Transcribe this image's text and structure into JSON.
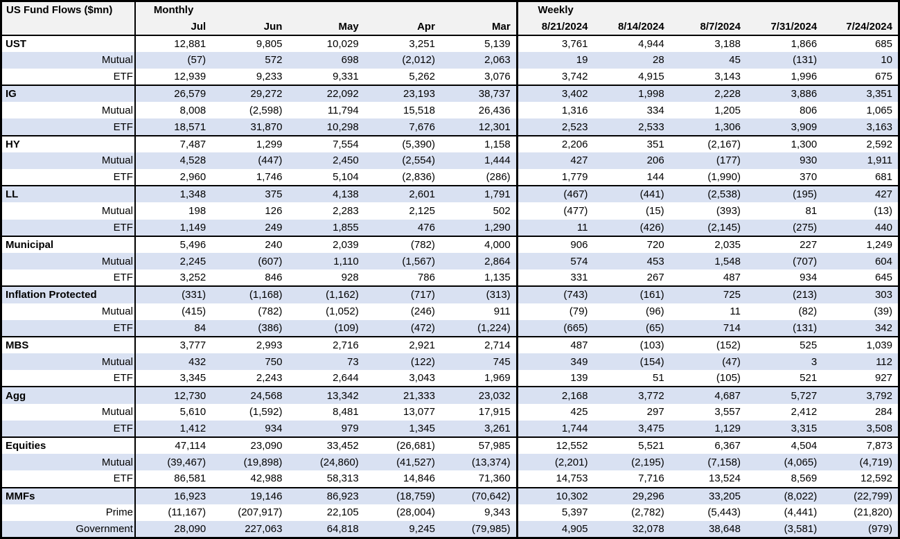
{
  "chart_data": {
    "type": "table",
    "title": "US Fund Flows ($mn)",
    "sections": [
      {
        "label": "Monthly",
        "columns": [
          "Jul",
          "Jun",
          "May",
          "Apr",
          "Mar"
        ]
      },
      {
        "label": "Weekly",
        "columns": [
          "8/21/2024",
          "8/14/2024",
          "8/7/2024",
          "7/31/2024",
          "7/24/2024"
        ]
      }
    ],
    "groups": [
      {
        "category": "UST",
        "rows": [
          {
            "label": "UST",
            "bold": true,
            "monthly": [
              "12,881",
              "9,805",
              "10,029",
              "3,251",
              "5,139"
            ],
            "weekly": [
              "3,761",
              "4,944",
              "3,188",
              "1,866",
              "685"
            ]
          },
          {
            "label": "Mutual",
            "bold": false,
            "monthly": [
              "(57)",
              "572",
              "698",
              "(2,012)",
              "2,063"
            ],
            "weekly": [
              "19",
              "28",
              "45",
              "(131)",
              "10"
            ]
          },
          {
            "label": "ETF",
            "bold": false,
            "monthly": [
              "12,939",
              "9,233",
              "9,331",
              "5,262",
              "3,076"
            ],
            "weekly": [
              "3,742",
              "4,915",
              "3,143",
              "1,996",
              "675"
            ]
          }
        ]
      },
      {
        "category": "IG",
        "rows": [
          {
            "label": "IG",
            "bold": true,
            "monthly": [
              "26,579",
              "29,272",
              "22,092",
              "23,193",
              "38,737"
            ],
            "weekly": [
              "3,402",
              "1,998",
              "2,228",
              "3,886",
              "3,351"
            ]
          },
          {
            "label": "Mutual",
            "bold": false,
            "monthly": [
              "8,008",
              "(2,598)",
              "11,794",
              "15,518",
              "26,436"
            ],
            "weekly": [
              "1,316",
              "334",
              "1,205",
              "806",
              "1,065"
            ]
          },
          {
            "label": "ETF",
            "bold": false,
            "monthly": [
              "18,571",
              "31,870",
              "10,298",
              "7,676",
              "12,301"
            ],
            "weekly": [
              "2,523",
              "2,533",
              "1,306",
              "3,909",
              "3,163"
            ]
          }
        ]
      },
      {
        "category": "HY",
        "rows": [
          {
            "label": "HY",
            "bold": true,
            "monthly": [
              "7,487",
              "1,299",
              "7,554",
              "(5,390)",
              "1,158"
            ],
            "weekly": [
              "2,206",
              "351",
              "(2,167)",
              "1,300",
              "2,592"
            ]
          },
          {
            "label": "Mutual",
            "bold": false,
            "monthly": [
              "4,528",
              "(447)",
              "2,450",
              "(2,554)",
              "1,444"
            ],
            "weekly": [
              "427",
              "206",
              "(177)",
              "930",
              "1,911"
            ]
          },
          {
            "label": "ETF",
            "bold": false,
            "monthly": [
              "2,960",
              "1,746",
              "5,104",
              "(2,836)",
              "(286)"
            ],
            "weekly": [
              "1,779",
              "144",
              "(1,990)",
              "370",
              "681"
            ]
          }
        ]
      },
      {
        "category": "LL",
        "rows": [
          {
            "label": "LL",
            "bold": true,
            "monthly": [
              "1,348",
              "375",
              "4,138",
              "2,601",
              "1,791"
            ],
            "weekly": [
              "(467)",
              "(441)",
              "(2,538)",
              "(195)",
              "427"
            ]
          },
          {
            "label": "Mutual",
            "bold": false,
            "monthly": [
              "198",
              "126",
              "2,283",
              "2,125",
              "502"
            ],
            "weekly": [
              "(477)",
              "(15)",
              "(393)",
              "81",
              "(13)"
            ]
          },
          {
            "label": "ETF",
            "bold": false,
            "monthly": [
              "1,149",
              "249",
              "1,855",
              "476",
              "1,290"
            ],
            "weekly": [
              "11",
              "(426)",
              "(2,145)",
              "(275)",
              "440"
            ]
          }
        ]
      },
      {
        "category": "Municipal",
        "rows": [
          {
            "label": "Municipal",
            "bold": true,
            "monthly": [
              "5,496",
              "240",
              "2,039",
              "(782)",
              "4,000"
            ],
            "weekly": [
              "906",
              "720",
              "2,035",
              "227",
              "1,249"
            ]
          },
          {
            "label": "Mutual",
            "bold": false,
            "monthly": [
              "2,245",
              "(607)",
              "1,110",
              "(1,567)",
              "2,864"
            ],
            "weekly": [
              "574",
              "453",
              "1,548",
              "(707)",
              "604"
            ]
          },
          {
            "label": "ETF",
            "bold": false,
            "monthly": [
              "3,252",
              "846",
              "928",
              "786",
              "1,135"
            ],
            "weekly": [
              "331",
              "267",
              "487",
              "934",
              "645"
            ]
          }
        ]
      },
      {
        "category": "Inflation Protected",
        "rows": [
          {
            "label": "Inflation Protected",
            "bold": true,
            "monthly": [
              "(331)",
              "(1,168)",
              "(1,162)",
              "(717)",
              "(313)"
            ],
            "weekly": [
              "(743)",
              "(161)",
              "725",
              "(213)",
              "303"
            ]
          },
          {
            "label": "Mutual",
            "bold": false,
            "monthly": [
              "(415)",
              "(782)",
              "(1,052)",
              "(246)",
              "911"
            ],
            "weekly": [
              "(79)",
              "(96)",
              "11",
              "(82)",
              "(39)"
            ]
          },
          {
            "label": "ETF",
            "bold": false,
            "monthly": [
              "84",
              "(386)",
              "(109)",
              "(472)",
              "(1,224)"
            ],
            "weekly": [
              "(665)",
              "(65)",
              "714",
              "(131)",
              "342"
            ]
          }
        ]
      },
      {
        "category": "MBS",
        "rows": [
          {
            "label": "MBS",
            "bold": true,
            "monthly": [
              "3,777",
              "2,993",
              "2,716",
              "2,921",
              "2,714"
            ],
            "weekly": [
              "487",
              "(103)",
              "(152)",
              "525",
              "1,039"
            ]
          },
          {
            "label": "Mutual",
            "bold": false,
            "monthly": [
              "432",
              "750",
              "73",
              "(122)",
              "745"
            ],
            "weekly": [
              "349",
              "(154)",
              "(47)",
              "3",
              "112"
            ]
          },
          {
            "label": "ETF",
            "bold": false,
            "monthly": [
              "3,345",
              "2,243",
              "2,644",
              "3,043",
              "1,969"
            ],
            "weekly": [
              "139",
              "51",
              "(105)",
              "521",
              "927"
            ]
          }
        ]
      },
      {
        "category": "Agg",
        "rows": [
          {
            "label": "Agg",
            "bold": true,
            "monthly": [
              "12,730",
              "24,568",
              "13,342",
              "21,333",
              "23,032"
            ],
            "weekly": [
              "2,168",
              "3,772",
              "4,687",
              "5,727",
              "3,792"
            ]
          },
          {
            "label": "Mutual",
            "bold": false,
            "monthly": [
              "5,610",
              "(1,592)",
              "8,481",
              "13,077",
              "17,915"
            ],
            "weekly": [
              "425",
              "297",
              "3,557",
              "2,412",
              "284"
            ]
          },
          {
            "label": "ETF",
            "bold": false,
            "monthly": [
              "1,412",
              "934",
              "979",
              "1,345",
              "3,261"
            ],
            "weekly": [
              "1,744",
              "3,475",
              "1,129",
              "3,315",
              "3,508"
            ]
          }
        ]
      },
      {
        "category": "Equities",
        "rows": [
          {
            "label": "Equities",
            "bold": true,
            "monthly": [
              "47,114",
              "23,090",
              "33,452",
              "(26,681)",
              "57,985"
            ],
            "weekly": [
              "12,552",
              "5,521",
              "6,367",
              "4,504",
              "7,873"
            ]
          },
          {
            "label": "Mutual",
            "bold": false,
            "monthly": [
              "(39,467)",
              "(19,898)",
              "(24,860)",
              "(41,527)",
              "(13,374)"
            ],
            "weekly": [
              "(2,201)",
              "(2,195)",
              "(7,158)",
              "(4,065)",
              "(4,719)"
            ]
          },
          {
            "label": "ETF",
            "bold": false,
            "monthly": [
              "86,581",
              "42,988",
              "58,313",
              "14,846",
              "71,360"
            ],
            "weekly": [
              "14,753",
              "7,716",
              "13,524",
              "8,569",
              "12,592"
            ]
          }
        ]
      },
      {
        "category": "MMFs",
        "rows": [
          {
            "label": "MMFs",
            "bold": true,
            "monthly": [
              "16,923",
              "19,146",
              "86,923",
              "(18,759)",
              "(70,642)"
            ],
            "weekly": [
              "10,302",
              "29,296",
              "33,205",
              "(8,022)",
              "(22,799)"
            ]
          },
          {
            "label": "Prime",
            "bold": false,
            "monthly": [
              "(11,167)",
              "(207,917)",
              "22,105",
              "(28,004)",
              "9,343"
            ],
            "weekly": [
              "5,397",
              "(2,782)",
              "(5,443)",
              "(4,441)",
              "(21,820)"
            ]
          },
          {
            "label": "Government",
            "bold": false,
            "monthly": [
              "28,090",
              "227,063",
              "64,818",
              "9,245",
              "(79,985)"
            ],
            "weekly": [
              "4,905",
              "32,078",
              "38,648",
              "(3,581)",
              "(979)"
            ]
          }
        ]
      }
    ],
    "colors": {
      "row_alt": "#D9E1F2",
      "header_bg": "#F2F2F2",
      "border": "#000000",
      "text": "#000000"
    },
    "layout": {
      "negative_format": "parentheses",
      "grid": "group-separators-only",
      "shading": "alternating-rows"
    }
  }
}
